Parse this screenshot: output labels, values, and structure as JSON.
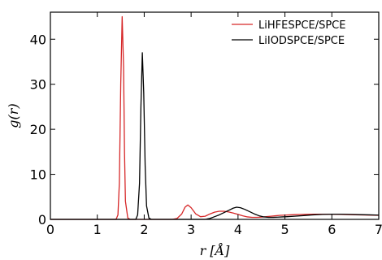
{
  "chart_data": {
    "type": "line",
    "title": "",
    "xlabel": "r [Å]",
    "ylabel": "g(r)",
    "xlim": [
      0,
      7
    ],
    "ylim": [
      0,
      46
    ],
    "xticks": [
      0,
      1,
      2,
      3,
      4,
      5,
      6,
      7
    ],
    "yticks": [
      0,
      10,
      20,
      30,
      40
    ],
    "grid": false,
    "legend_position": "top-right",
    "series": [
      {
        "name": "LiHFESPCE/SPCE",
        "color": "#d62728",
        "x": [
          0,
          1.4,
          1.44,
          1.47,
          1.5,
          1.53,
          1.56,
          1.58,
          1.6,
          1.65,
          1.7,
          2.6,
          2.7,
          2.8,
          2.87,
          2.93,
          3.0,
          3.1,
          3.2,
          3.3,
          3.4,
          3.5,
          3.6,
          3.7,
          3.8,
          3.9,
          4.0,
          4.1,
          4.2,
          4.3,
          4.4,
          4.5,
          4.6,
          4.7,
          4.8,
          4.9,
          5.0,
          5.2,
          5.4,
          5.6,
          5.8,
          6.0,
          6.2,
          6.4,
          6.6,
          6.8,
          7.0
        ],
        "y": [
          0,
          0,
          1.0,
          8.0,
          30.0,
          45.0,
          34.0,
          15.0,
          4.0,
          0.3,
          0,
          0,
          0.2,
          1.2,
          2.7,
          3.2,
          2.6,
          1.2,
          0.6,
          0.7,
          1.2,
          1.6,
          1.8,
          1.8,
          1.65,
          1.4,
          1.1,
          0.8,
          0.55,
          0.45,
          0.45,
          0.5,
          0.6,
          0.7,
          0.8,
          0.9,
          0.95,
          1.05,
          1.1,
          1.15,
          1.15,
          1.15,
          1.1,
          1.05,
          1.0,
          0.95,
          0.9
        ]
      },
      {
        "name": "LiIODSPCE/SPCE",
        "color": "#000000",
        "x": [
          0,
          1.82,
          1.86,
          1.9,
          1.93,
          1.96,
          1.99,
          2.02,
          2.05,
          2.1,
          2.15,
          3.3,
          3.4,
          3.5,
          3.6,
          3.7,
          3.8,
          3.9,
          3.97,
          4.05,
          4.15,
          4.25,
          4.35,
          4.45,
          4.55,
          4.65,
          4.75,
          4.85,
          4.95,
          5.05,
          5.2,
          5.4,
          5.6,
          5.8,
          6.0,
          6.2,
          6.4,
          6.6,
          6.8,
          7.0
        ],
        "y": [
          0,
          0,
          1.0,
          8.0,
          25.0,
          37.0,
          28.0,
          12.0,
          3.0,
          0.3,
          0,
          0,
          0.2,
          0.6,
          1.0,
          1.5,
          2.0,
          2.5,
          2.7,
          2.6,
          2.2,
          1.7,
          1.2,
          0.8,
          0.55,
          0.45,
          0.45,
          0.5,
          0.55,
          0.6,
          0.7,
          0.85,
          1.0,
          1.1,
          1.15,
          1.15,
          1.1,
          1.05,
          1.0,
          0.95
        ]
      }
    ]
  }
}
